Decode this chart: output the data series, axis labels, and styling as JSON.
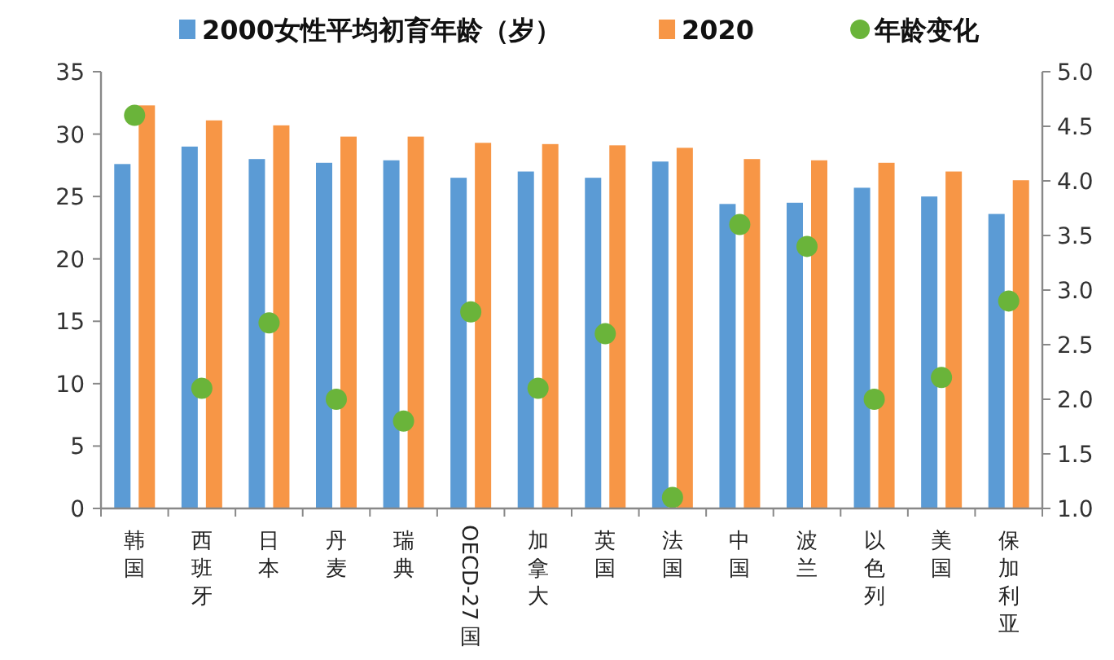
{
  "chart_data": {
    "type": "bar",
    "categories": [
      "韩国",
      "西班牙",
      "日本",
      "丹麦",
      "瑞典",
      "OECD-27国",
      "加拿大",
      "英国",
      "法国",
      "中国",
      "波兰",
      "以色列",
      "美国",
      "保加利亚"
    ],
    "series": [
      {
        "name": "2000女性平均初育年龄（岁）",
        "color": "#5b9bd5",
        "values": [
          27.6,
          29.0,
          28.0,
          27.7,
          27.9,
          26.5,
          27.0,
          26.5,
          27.8,
          24.4,
          24.5,
          25.7,
          25.0,
          23.6
        ]
      },
      {
        "name": "2020",
        "color": "#f79646",
        "values": [
          32.3,
          31.1,
          30.7,
          29.8,
          29.8,
          29.3,
          29.2,
          29.1,
          28.9,
          28.0,
          27.9,
          27.7,
          27.0,
          26.3
        ]
      },
      {
        "name": "年龄变化",
        "type": "scatter",
        "axis": "y2",
        "marker": "circle",
        "color": "#6ab43a",
        "values": [
          4.6,
          2.1,
          2.7,
          2.0,
          1.8,
          2.8,
          2.1,
          2.6,
          1.1,
          3.6,
          3.4,
          2.0,
          2.2,
          2.9
        ]
      }
    ],
    "ylim": [
      0,
      35
    ],
    "yticks": [
      0,
      5,
      10,
      15,
      20,
      25,
      30,
      35
    ],
    "y2lim": [
      1,
      5
    ],
    "y2ticks": [
      {
        "value": 1,
        "label": "1.0"
      },
      {
        "value": 1.5,
        "label": "1.5"
      },
      {
        "value": 2,
        "label": "2.0"
      },
      {
        "value": 2.5,
        "label": "2.5"
      },
      {
        "value": 3,
        "label": "3.0"
      },
      {
        "value": 3.5,
        "label": "3.5"
      },
      {
        "value": 4,
        "label": "4.0"
      },
      {
        "value": 4.5,
        "label": "4.5"
      },
      {
        "value": 5,
        "label": "5.0"
      }
    ],
    "legend": "top"
  }
}
